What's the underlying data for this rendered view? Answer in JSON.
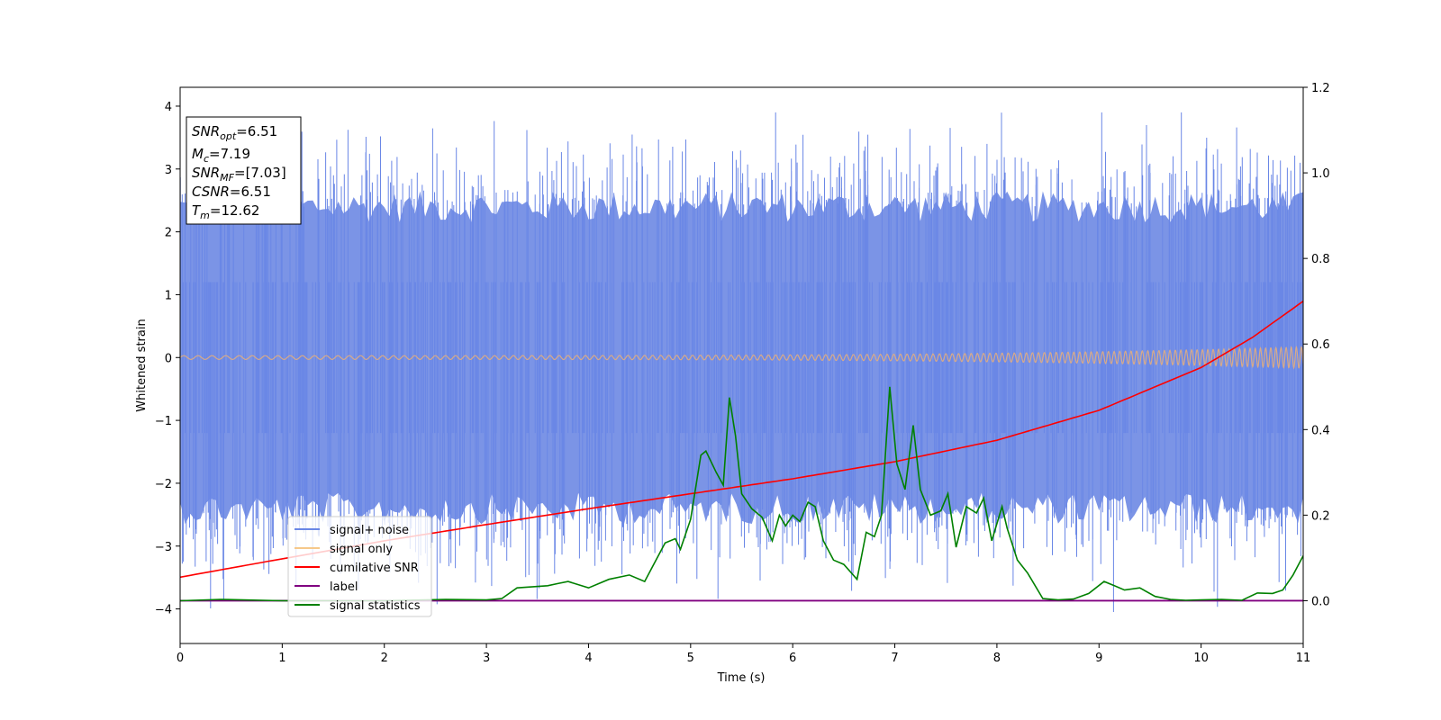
{
  "chart_data": {
    "type": "line",
    "title": "",
    "xlabel": "Time (s)",
    "ylabel": "Whitened strain",
    "y2label": "",
    "xlim": [
      0,
      11
    ],
    "ylim": [
      -4.55,
      4.3
    ],
    "y2lim": [
      -0.1,
      1.2
    ],
    "x_ticks": [
      0,
      1,
      2,
      3,
      4,
      5,
      6,
      7,
      8,
      9,
      10,
      11
    ],
    "y_ticks": [
      -4,
      -3,
      -2,
      -1,
      0,
      1,
      2,
      3,
      4
    ],
    "y2_ticks": [
      "0.0",
      "0.2",
      "0.4",
      "0.6",
      "0.8",
      "1.0",
      "1.2"
    ],
    "grid": false,
    "legend_position": "lower-left",
    "legend": [
      "signal+ noise",
      "signal only",
      "cumilative SNR",
      "label",
      "signal statistics"
    ],
    "colors": {
      "signal_noise": "#6a87e6",
      "signal_only": "#f6c88a",
      "cumulative_snr": "#ff0000",
      "label": "#800080",
      "signal_statistics": "#008000"
    },
    "series": [
      {
        "name": "signal+ noise",
        "axis": "left",
        "description": "dense noise band centered at 0",
        "amplitude_typical": 2.4,
        "spike_max": 3.9,
        "spike_min": -4.15
      },
      {
        "name": "signal only",
        "axis": "left",
        "description": "oscillation around 0 growing in amplitude",
        "amplitude_start": 0.03,
        "amplitude_end": 0.17
      },
      {
        "name": "cumilative SNR",
        "axis": "right",
        "x": [
          0,
          1,
          2,
          3,
          4,
          5,
          6,
          7,
          8,
          9,
          10,
          10.5,
          11
        ],
        "y": [
          0.055,
          0.098,
          0.14,
          0.178,
          0.215,
          0.25,
          0.285,
          0.325,
          0.375,
          0.445,
          0.545,
          0.615,
          0.7
        ]
      },
      {
        "name": "label",
        "axis": "right",
        "x": [
          0,
          11
        ],
        "y": [
          0.0,
          0.0
        ]
      },
      {
        "name": "signal statistics",
        "axis": "right",
        "x": [
          0,
          0.4,
          1.0,
          2.0,
          2.6,
          3.0,
          3.15,
          3.3,
          3.6,
          3.7,
          3.8,
          4.0,
          4.2,
          4.4,
          4.55,
          4.65,
          4.75,
          4.85,
          4.9,
          5.0,
          5.1,
          5.15,
          5.25,
          5.32,
          5.38,
          5.44,
          5.5,
          5.6,
          5.7,
          5.8,
          5.87,
          5.93,
          6.0,
          6.07,
          6.15,
          6.22,
          6.3,
          6.4,
          6.5,
          6.63,
          6.72,
          6.8,
          6.87,
          6.95,
          7.02,
          7.1,
          7.18,
          7.25,
          7.35,
          7.45,
          7.52,
          7.6,
          7.7,
          7.8,
          7.87,
          7.95,
          8.05,
          8.1,
          8.2,
          8.3,
          8.45,
          8.6,
          8.75,
          8.9,
          9.05,
          9.15,
          9.25,
          9.4,
          9.55,
          9.7,
          9.85,
          10.0,
          10.2,
          10.4,
          10.55,
          10.7,
          10.8,
          10.9,
          11.0
        ],
        "y": [
          0.0,
          0.003,
          0.0,
          0.0,
          0.003,
          0.002,
          0.005,
          0.03,
          0.035,
          0.04,
          0.045,
          0.03,
          0.05,
          0.06,
          0.045,
          0.09,
          0.135,
          0.145,
          0.12,
          0.19,
          0.34,
          0.35,
          0.3,
          0.27,
          0.475,
          0.385,
          0.25,
          0.215,
          0.195,
          0.14,
          0.2,
          0.175,
          0.2,
          0.185,
          0.23,
          0.22,
          0.14,
          0.095,
          0.085,
          0.05,
          0.16,
          0.15,
          0.2,
          0.5,
          0.32,
          0.26,
          0.41,
          0.26,
          0.2,
          0.21,
          0.25,
          0.125,
          0.22,
          0.205,
          0.24,
          0.14,
          0.22,
          0.17,
          0.095,
          0.065,
          0.005,
          0.002,
          0.004,
          0.017,
          0.045,
          0.035,
          0.025,
          0.03,
          0.01,
          0.003,
          0.001,
          0.002,
          0.003,
          0.001,
          0.018,
          0.017,
          0.025,
          0.06,
          0.105
        ]
      }
    ]
  },
  "annotation": {
    "lines": [
      {
        "base": "SNR",
        "sub": "opt",
        "rest": "=6.51"
      },
      {
        "base": "M",
        "sub": "c",
        "rest": "=7.19"
      },
      {
        "base": "SNR",
        "sub": "MF",
        "rest": "=[7.03]"
      },
      {
        "base": "CSNR",
        "sub": "",
        "rest": "=6.51"
      },
      {
        "base": "T",
        "sub": "m",
        "rest": "=12.62"
      }
    ]
  }
}
